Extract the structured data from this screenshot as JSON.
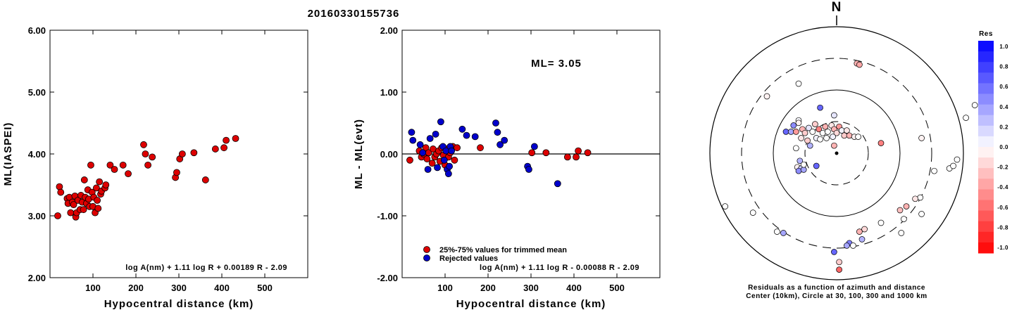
{
  "title": "20160330155736",
  "chart_data": [
    {
      "type": "scatter",
      "name": "ml-vs-distance",
      "xlabel": "Hypocentral distance (km)",
      "ylabel": "ML(IASPEI)",
      "xlim": [
        0,
        600
      ],
      "ylim": [
        2.0,
        6.0
      ],
      "xticks": [
        "100",
        "200",
        "300",
        "400",
        "500"
      ],
      "yticks": [
        "2.00",
        "3.00",
        "4.00",
        "5.00",
        "6.00"
      ],
      "formula": "log A(nm) + 1.11 log R + 0.00189 R - 2.09",
      "point_color": "#dd0000",
      "points": [
        [
          18,
          3.0
        ],
        [
          22,
          3.47
        ],
        [
          25,
          3.38
        ],
        [
          40,
          3.28
        ],
        [
          42,
          3.2
        ],
        [
          45,
          3.3
        ],
        [
          48,
          3.05
        ],
        [
          52,
          3.22
        ],
        [
          55,
          3.18
        ],
        [
          58,
          3.32
        ],
        [
          60,
          2.98
        ],
        [
          62,
          3.05
        ],
        [
          65,
          3.25
        ],
        [
          70,
          3.1
        ],
        [
          72,
          3.33
        ],
        [
          75,
          3.22
        ],
        [
          78,
          3.1
        ],
        [
          80,
          3.58
        ],
        [
          82,
          3.3
        ],
        [
          85,
          3.2
        ],
        [
          88,
          3.42
        ],
        [
          90,
          3.27
        ],
        [
          92,
          3.15
        ],
        [
          95,
          3.82
        ],
        [
          98,
          3.38
        ],
        [
          100,
          3.15
        ],
        [
          102,
          3.3
        ],
        [
          105,
          3.05
        ],
        [
          108,
          3.45
        ],
        [
          110,
          3.25
        ],
        [
          112,
          3.12
        ],
        [
          115,
          3.55
        ],
        [
          118,
          3.35
        ],
        [
          120,
          3.4
        ],
        [
          128,
          3.45
        ],
        [
          130,
          3.5
        ],
        [
          140,
          3.82
        ],
        [
          150,
          3.75
        ],
        [
          170,
          3.82
        ],
        [
          182,
          3.68
        ],
        [
          218,
          4.15
        ],
        [
          222,
          4.0
        ],
        [
          228,
          3.82
        ],
        [
          238,
          3.95
        ],
        [
          292,
          3.62
        ],
        [
          295,
          3.7
        ],
        [
          302,
          3.92
        ],
        [
          308,
          4.0
        ],
        [
          335,
          4.02
        ],
        [
          362,
          3.58
        ],
        [
          385,
          4.08
        ],
        [
          405,
          4.1
        ],
        [
          410,
          4.22
        ],
        [
          432,
          4.25
        ]
      ]
    },
    {
      "type": "scatter",
      "name": "residual-vs-distance",
      "xlabel": "Hypocentral distance (km)",
      "ylabel": "ML - ML(evt)",
      "xlim": [
        0,
        600
      ],
      "ylim": [
        -2.0,
        2.0
      ],
      "xticks": [
        "100",
        "200",
        "300",
        "400",
        "500"
      ],
      "yticks": [
        "-2.00",
        "-1.00",
        "0.00",
        "1.00",
        "2.00"
      ],
      "ml_label": "ML= 3.05",
      "formula": "log A(nm) + 1.11 log R - 0.00088 R - 2.09",
      "legend": [
        {
          "label": "25%-75% values for trimmed mean",
          "color": "#dd0000"
        },
        {
          "label": "Rejected values",
          "color": "#0000cc"
        }
      ],
      "series": [
        {
          "name": "25%-75% values for trimmed mean",
          "color": "#dd0000",
          "points": [
            [
              18,
              -0.1
            ],
            [
              40,
              0.05
            ],
            [
              45,
              -0.05
            ],
            [
              50,
              0.0
            ],
            [
              55,
              0.1
            ],
            [
              58,
              -0.08
            ],
            [
              62,
              0.02
            ],
            [
              70,
              -0.15
            ],
            [
              72,
              0.08
            ],
            [
              76,
              -0.05
            ],
            [
              80,
              0.0
            ],
            [
              85,
              0.05
            ],
            [
              88,
              -0.12
            ],
            [
              92,
              0.1
            ],
            [
              96,
              -0.02
            ],
            [
              100,
              -0.18
            ],
            [
              104,
              0.08
            ],
            [
              108,
              -0.05
            ],
            [
              112,
              0.02
            ],
            [
              118,
              0.12
            ],
            [
              122,
              -0.1
            ],
            [
              128,
              0.1
            ],
            [
              182,
              0.1
            ],
            [
              302,
              0.02
            ],
            [
              335,
              0.02
            ],
            [
              385,
              -0.05
            ],
            [
              405,
              -0.05
            ],
            [
              410,
              0.05
            ],
            [
              432,
              0.02
            ]
          ]
        },
        {
          "name": "Rejected values",
          "color": "#0000cc",
          "points": [
            [
              22,
              0.35
            ],
            [
              25,
              0.22
            ],
            [
              42,
              0.15
            ],
            [
              48,
              0.02
            ],
            [
              60,
              -0.25
            ],
            [
              65,
              0.25
            ],
            [
              78,
              0.32
            ],
            [
              82,
              -0.22
            ],
            [
              90,
              0.52
            ],
            [
              95,
              0.12
            ],
            [
              98,
              -0.1
            ],
            [
              102,
              0.05
            ],
            [
              105,
              -0.25
            ],
            [
              108,
              -0.32
            ],
            [
              110,
              -0.2
            ],
            [
              112,
              0.12
            ],
            [
              115,
              0.05
            ],
            [
              140,
              0.4
            ],
            [
              150,
              0.3
            ],
            [
              170,
              0.28
            ],
            [
              218,
              0.5
            ],
            [
              222,
              0.35
            ],
            [
              228,
              0.15
            ],
            [
              238,
              0.22
            ],
            [
              292,
              -0.2
            ],
            [
              295,
              -0.25
            ],
            [
              308,
              0.12
            ],
            [
              362,
              -0.48
            ]
          ]
        }
      ]
    },
    {
      "type": "scatter",
      "name": "azimuth-distance-polar",
      "north_label": "N",
      "caption_line1": "Residuals as a function of azimuth and distance",
      "caption_line2": "Center (10km), Circle at 30, 100, 300 and 1000 km",
      "colorbar": {
        "title": "Res",
        "labels": [
          "1.0",
          "0.8",
          "0.6",
          "0.4",
          "0.2",
          "0.0",
          "-0.2",
          "-0.4",
          "-0.6",
          "-0.8",
          "-1.0"
        ],
        "max_color": "#0000ff",
        "zero_color": "#ffffff",
        "min_color": "#ff0000"
      },
      "stations": [
        [
          -0.3,
          -0.55,
          0.0
        ],
        [
          -0.55,
          -0.45,
          -0.05
        ],
        [
          -0.3,
          -0.26,
          0.02
        ],
        [
          -0.13,
          -0.36,
          0.6
        ],
        [
          0.16,
          -0.71,
          -0.3
        ],
        [
          0.18,
          -0.7,
          -0.35
        ],
        [
          1.09,
          -0.38,
          0.0
        ],
        [
          1.02,
          -0.28,
          0.0
        ],
        [
          -0.02,
          -0.3,
          0.1
        ],
        [
          -0.4,
          -0.17,
          0.6
        ],
        [
          -0.36,
          -0.17,
          0.35
        ],
        [
          -0.34,
          -0.22,
          0.45
        ],
        [
          -0.32,
          -0.17,
          -0.4
        ],
        [
          -0.3,
          -0.24,
          -0.05
        ],
        [
          -0.27,
          -0.19,
          -0.3
        ],
        [
          -0.25,
          -0.16,
          -0.2
        ],
        [
          -0.22,
          -0.2,
          0.1
        ],
        [
          -0.19,
          -0.17,
          0.0
        ],
        [
          -0.17,
          -0.23,
          -0.2
        ],
        [
          -0.14,
          -0.19,
          -0.5
        ],
        [
          -0.11,
          -0.16,
          0.0
        ],
        [
          -0.09,
          -0.21,
          -0.3
        ],
        [
          -0.07,
          -0.17,
          0.0
        ],
        [
          -0.04,
          -0.22,
          -0.1
        ],
        [
          -0.02,
          -0.19,
          -0.3
        ],
        [
          0.0,
          -0.16,
          -0.15
        ],
        [
          0.02,
          -0.21,
          -0.4
        ],
        [
          0.04,
          -0.18,
          0.05
        ],
        [
          0.06,
          -0.14,
          -0.2
        ],
        [
          0.08,
          -0.18,
          -0.1
        ],
        [
          0.1,
          -0.14,
          -0.3
        ],
        [
          -0.16,
          -0.12,
          0.05
        ],
        [
          -0.13,
          -0.11,
          0.0
        ],
        [
          0.14,
          -0.13,
          -0.05
        ],
        [
          0.17,
          -0.13,
          0.0
        ],
        [
          -0.28,
          -0.12,
          -0.1
        ],
        [
          -0.23,
          -0.1,
          -0.2
        ],
        [
          -0.08,
          -0.12,
          0.0
        ],
        [
          -0.03,
          -0.13,
          0.05
        ],
        [
          0.67,
          -0.12,
          -0.05
        ],
        [
          0.35,
          -0.08,
          -0.5
        ],
        [
          -0.32,
          -0.04,
          0.0
        ],
        [
          -0.21,
          -0.06,
          0.3
        ],
        [
          -0.02,
          -0.06,
          -0.3
        ],
        [
          -0.29,
          0.06,
          0.3
        ],
        [
          -0.31,
          0.11,
          -0.05
        ],
        [
          -0.28,
          0.12,
          0.2
        ],
        [
          -0.3,
          0.14,
          0.45
        ],
        [
          -0.26,
          0.13,
          0.35
        ],
        [
          -0.26,
          0.09,
          0.0
        ],
        [
          -0.16,
          0.1,
          0.6
        ],
        [
          0.77,
          0.14,
          0.0
        ],
        [
          0.89,
          0.12,
          0.0
        ],
        [
          0.92,
          0.1,
          0.0
        ],
        [
          0.95,
          0.05,
          0.0
        ],
        [
          0.66,
          0.35,
          0.0
        ],
        [
          0.62,
          0.36,
          -0.1
        ],
        [
          0.55,
          0.42,
          -0.3
        ],
        [
          0.5,
          0.45,
          -0.25
        ],
        [
          0.67,
          0.48,
          0.0
        ],
        [
          0.53,
          0.52,
          0.0
        ],
        [
          0.35,
          0.55,
          0.0
        ],
        [
          0.22,
          0.6,
          -0.15
        ],
        [
          0.18,
          0.62,
          -0.3
        ],
        [
          0.2,
          0.68,
          0.3
        ],
        [
          0.1,
          0.71,
          0.5
        ],
        [
          0.08,
          0.73,
          0.35
        ],
        [
          0.13,
          0.73,
          0.0
        ],
        [
          0.51,
          0.63,
          0.0
        ],
        [
          -0.47,
          0.62,
          0.0
        ],
        [
          -0.42,
          0.63,
          0.35
        ],
        [
          -0.66,
          0.47,
          0.0
        ],
        [
          -0.02,
          0.78,
          0.6
        ],
        [
          0.02,
          0.86,
          -0.2
        ],
        [
          0.02,
          0.92,
          -0.6
        ],
        [
          -0.88,
          0.42,
          0.0
        ]
      ]
    }
  ]
}
